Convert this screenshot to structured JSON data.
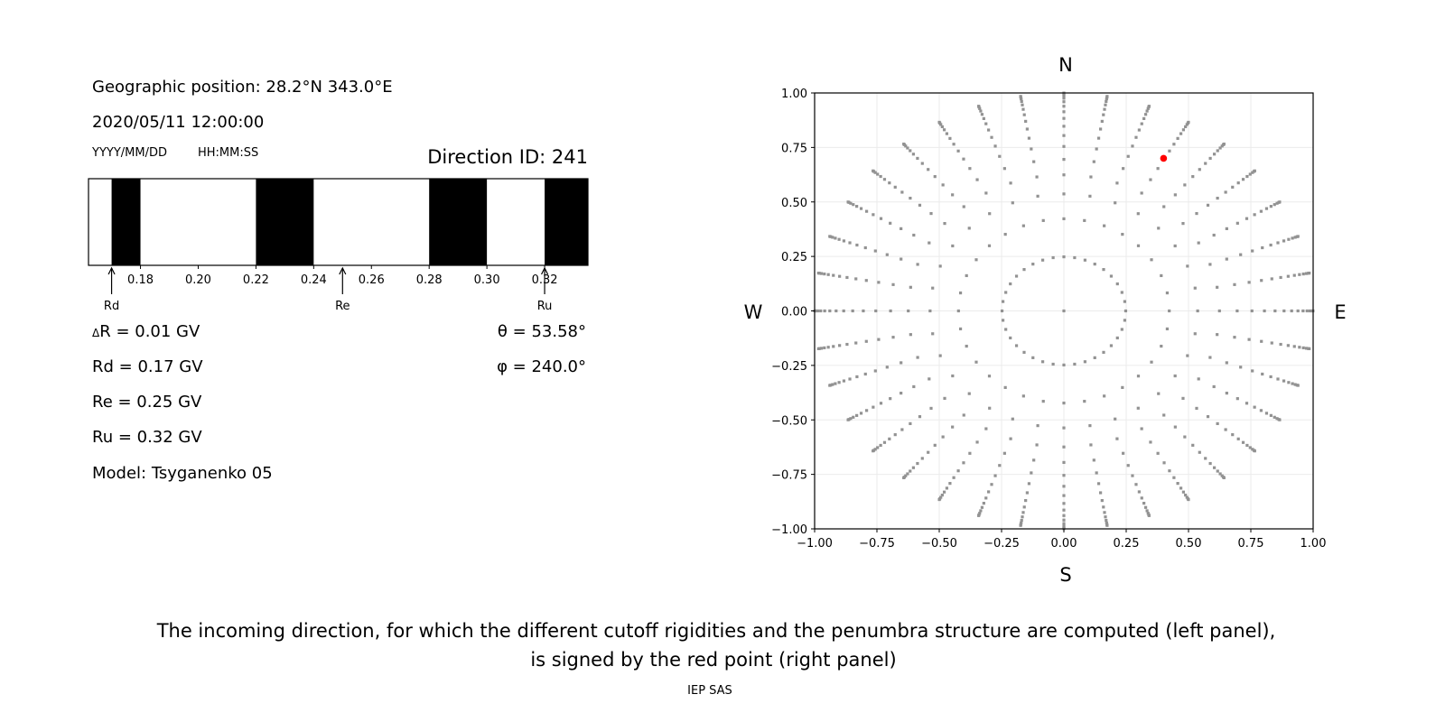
{
  "left_panel": {
    "geo_position": "Geographic position: 28.2°N 343.0°E",
    "datetime": "2020/05/11 12:00:00",
    "date_format": "YYYY/MM/DD",
    "time_format": "HH:MM:SS",
    "direction_id": "Direction ID: 241",
    "delta_r": "R = 0.01 GV",
    "delta_symbol": "Δ",
    "rd": "Rd = 0.17 GV",
    "re": "Re = 0.25 GV",
    "ru": "Ru = 0.32 GV",
    "model": "Model: Tsyganenko 05",
    "theta": "θ = 53.58°",
    "phi": "φ = 240.0°"
  },
  "chart_data": [
    {
      "type": "bar",
      "description_role": "penumbra",
      "xlim": [
        0.162,
        0.335
      ],
      "ticks": [
        "0.18",
        "0.20",
        "0.22",
        "0.24",
        "0.26",
        "0.28",
        "0.30",
        "0.32"
      ],
      "tick_values": [
        0.18,
        0.2,
        0.22,
        0.24,
        0.26,
        0.28,
        0.3,
        0.32
      ],
      "forbidden_bands": [
        [
          0.17,
          0.18
        ],
        [
          0.22,
          0.24
        ],
        [
          0.28,
          0.3
        ],
        [
          0.32,
          0.335
        ]
      ],
      "band_color": "#000000",
      "allowed_color": "#ffffff",
      "markers": [
        {
          "label": "Rd",
          "value": 0.17
        },
        {
          "label": "Re",
          "value": 0.25
        },
        {
          "label": "Ru",
          "value": 0.32
        }
      ]
    },
    {
      "type": "scatter",
      "xlim": [
        -1,
        1
      ],
      "ylim": [
        -1,
        1
      ],
      "grid": true,
      "ticks": [
        "−1.00",
        "−0.75",
        "−0.50",
        "−0.25",
        "0.00",
        "0.25",
        "0.50",
        "0.75",
        "1.00"
      ],
      "tick_values": [
        -1,
        -0.75,
        -0.5,
        -0.25,
        0,
        0.25,
        0.5,
        0.75,
        1
      ],
      "compass": {
        "north": "N",
        "south": "S",
        "west": "W",
        "east": "E"
      },
      "grid_points_color": "#929292",
      "selected_point": {
        "x": 0.4,
        "y": 0.7,
        "color": "#ff0000"
      }
    }
  ],
  "caption": {
    "line1": "The incoming direction, for which the different cutoff rigidities and the penumbra structure are computed (left panel),",
    "line2": "is signed by the red point (right panel)"
  },
  "footer": "IEP SAS"
}
